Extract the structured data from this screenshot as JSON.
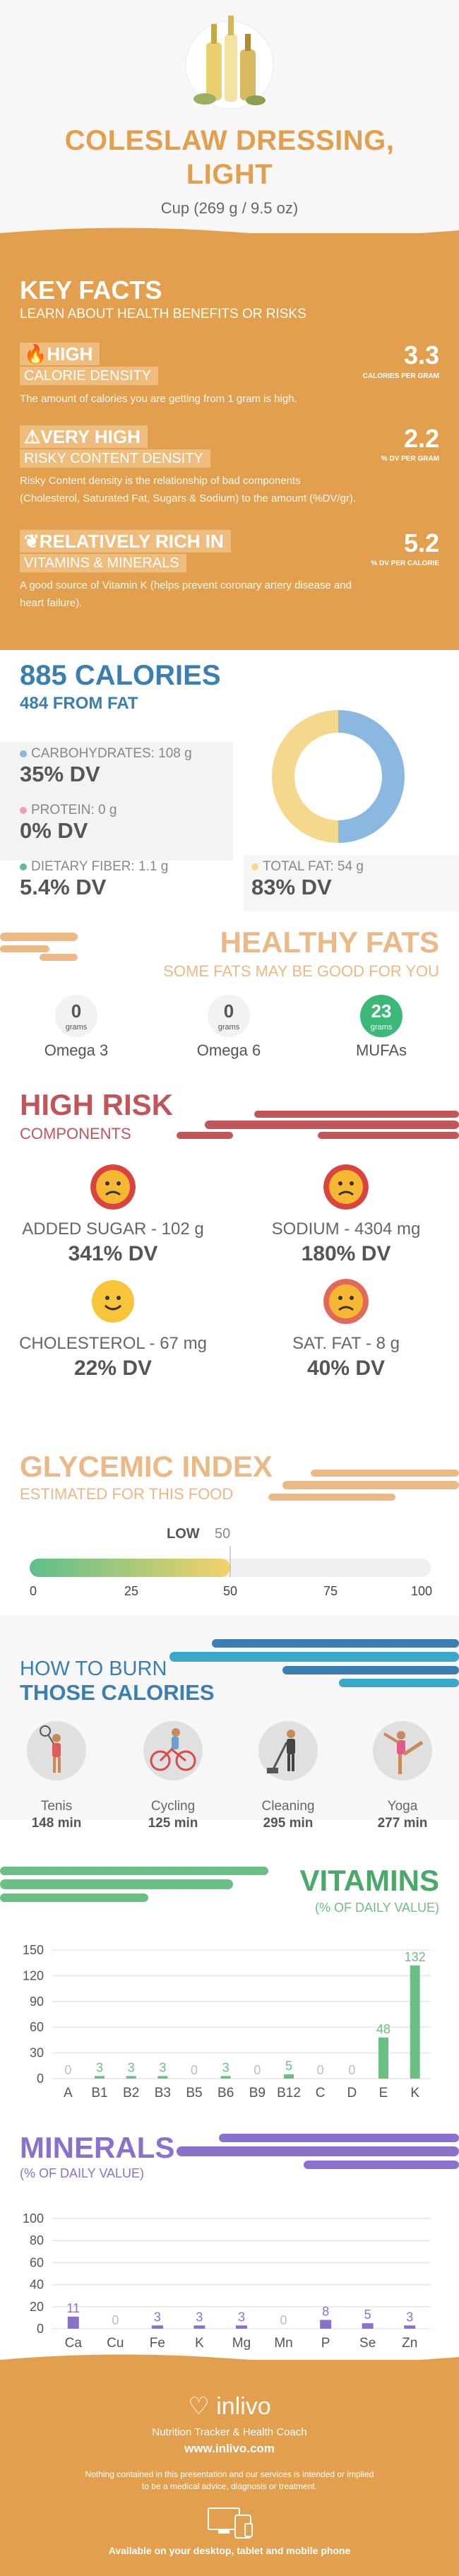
{
  "header": {
    "title_line1": "COLESLAW DRESSING,",
    "title_line2": "LIGHT",
    "serving": "Cup (269 g / 9.5 oz)"
  },
  "key_facts": {
    "title": "KEY FACTS",
    "subtitle": "LEARN ABOUT HEALTH BENEFITS OR RISKS",
    "facts": [
      {
        "level": "HIGH",
        "name": "CALORIE DENSITY",
        "value": "3.3",
        "unit": "CALORIES PER GRAM",
        "desc": "The amount of calories you are getting from 1 gram is high."
      },
      {
        "level": "VERY HIGH",
        "name": "RISKY CONTENT DENSITY",
        "value": "2.2",
        "unit": "% DV PER GRAM",
        "desc_line1": "Risky Content density is the relationship of bad components",
        "desc_line2": "(Cholesterol, Saturated Fat, Sugars & Sodium) to the amount (%DV/gr)."
      },
      {
        "level": "RELATIVELY RICH  IN",
        "name": "VITAMINS & MINERALS",
        "value": "5.2",
        "unit": "% DV PER CALORIE",
        "desc_line1": "A good source of Vitamin K (helps prevent coronary artery disease and",
        "desc_line2": "heart failure)."
      }
    ]
  },
  "calories": {
    "title": "885 CALORIES",
    "subtitle": "484 FROM FAT",
    "carbs_label": "CARBOHYDRATES: 108 g",
    "carbs_dv": "35% DV",
    "protein_label": "PROTEIN: 0 g",
    "protein_dv": "0% DV",
    "fiber_label": "DIETARY FIBER: 1.1 g",
    "fiber_dv": "5.4% DV",
    "fat_label": "TOTAL FAT: 54 g",
    "fat_dv": "83% DV",
    "colors": {
      "carbs": "#8ab8e0",
      "protein": "#f0a0b0",
      "fiber": "#5cc090",
      "fat": "#f6d88c"
    }
  },
  "donut": {
    "carbs_fraction": 0.5,
    "fat_fraction": 0.5
  },
  "healthy_fats": {
    "title": "HEALTHY FATS",
    "subtitle": "SOME FATS MAY BE GOOD FOR YOU",
    "items": [
      {
        "value": "0",
        "unit": "grams",
        "name": "Omega 3"
      },
      {
        "value": "0",
        "unit": "grams",
        "name": "Omega 6"
      },
      {
        "value": "23",
        "unit": "grams",
        "name": "MUFAs"
      }
    ]
  },
  "high_risk": {
    "title": "HIGH RISK",
    "subtitle": "COMPONENTS",
    "items": [
      {
        "label": "ADDED SUGAR - 102 g",
        "dv": "341% DV"
      },
      {
        "label": "SODIUM - 4304 mg",
        "dv": "180% DV"
      },
      {
        "label": "CHOLESTEROL - 67 mg",
        "dv": "22% DV"
      },
      {
        "label": "SAT. FAT - 8 g",
        "dv": "40% DV"
      }
    ]
  },
  "glycemic": {
    "title": "GLYCEMIC INDEX",
    "subtitle": "ESTIMATED FOR THIS FOOD",
    "level": "LOW",
    "value": 50,
    "value_label": "50",
    "ticks": [
      "0",
      "25",
      "50",
      "75",
      "100"
    ]
  },
  "burn": {
    "title1": "HOW TO BURN",
    "title2": "THOSE CALORIES",
    "items": [
      {
        "name": "Tenis",
        "minutes": "148 min"
      },
      {
        "name": "Cycling",
        "minutes": "125 min"
      },
      {
        "name": "Cleaning",
        "minutes": "295 min"
      },
      {
        "name": "Yoga",
        "minutes": "277 min"
      }
    ]
  },
  "vitamins": {
    "title": "VITAMINS",
    "subtitle": "(% OF DAILY VALUE)"
  },
  "minerals": {
    "title": "MINERALS",
    "subtitle": "(% OF DAILY VALUE)"
  },
  "chart_data": [
    {
      "type": "bar",
      "title": "VITAMINS",
      "subtitle": "(% OF DAILY VALUE)",
      "categories": [
        "A",
        "B1",
        "B2",
        "B3",
        "B5",
        "B6",
        "B9",
        "B12",
        "C",
        "D",
        "E",
        "K"
      ],
      "values": [
        0,
        3,
        3,
        3,
        0,
        3,
        0,
        5,
        0,
        0,
        48,
        132
      ],
      "ylim": [
        0,
        150
      ],
      "yticks": [
        0,
        30,
        60,
        90,
        120,
        150
      ],
      "color": "#6cbf84"
    },
    {
      "type": "bar",
      "title": "MINERALS",
      "subtitle": "(% OF DAILY VALUE)",
      "categories": [
        "Ca",
        "Cu",
        "Fe",
        "K",
        "Mg",
        "Mn",
        "P",
        "Se",
        "Zn"
      ],
      "values": [
        11,
        0,
        3,
        3,
        3,
        0,
        8,
        5,
        3
      ],
      "ylim": [
        0,
        100
      ],
      "yticks": [
        0,
        20,
        40,
        60,
        80,
        100
      ],
      "color": "#8a72cc"
    }
  ],
  "footer": {
    "brand": "inlivo",
    "tagline": "Nutrition Tracker & Health Coach",
    "url": "www.inlivo.com",
    "disclaimer_line1": "Nothing contained in this presentation and our services is intended or implied",
    "disclaimer_line2": "to be a medical advice, diagnosis or treatment.",
    "devices": "Available on your desktop, tablet and mobile phone"
  }
}
